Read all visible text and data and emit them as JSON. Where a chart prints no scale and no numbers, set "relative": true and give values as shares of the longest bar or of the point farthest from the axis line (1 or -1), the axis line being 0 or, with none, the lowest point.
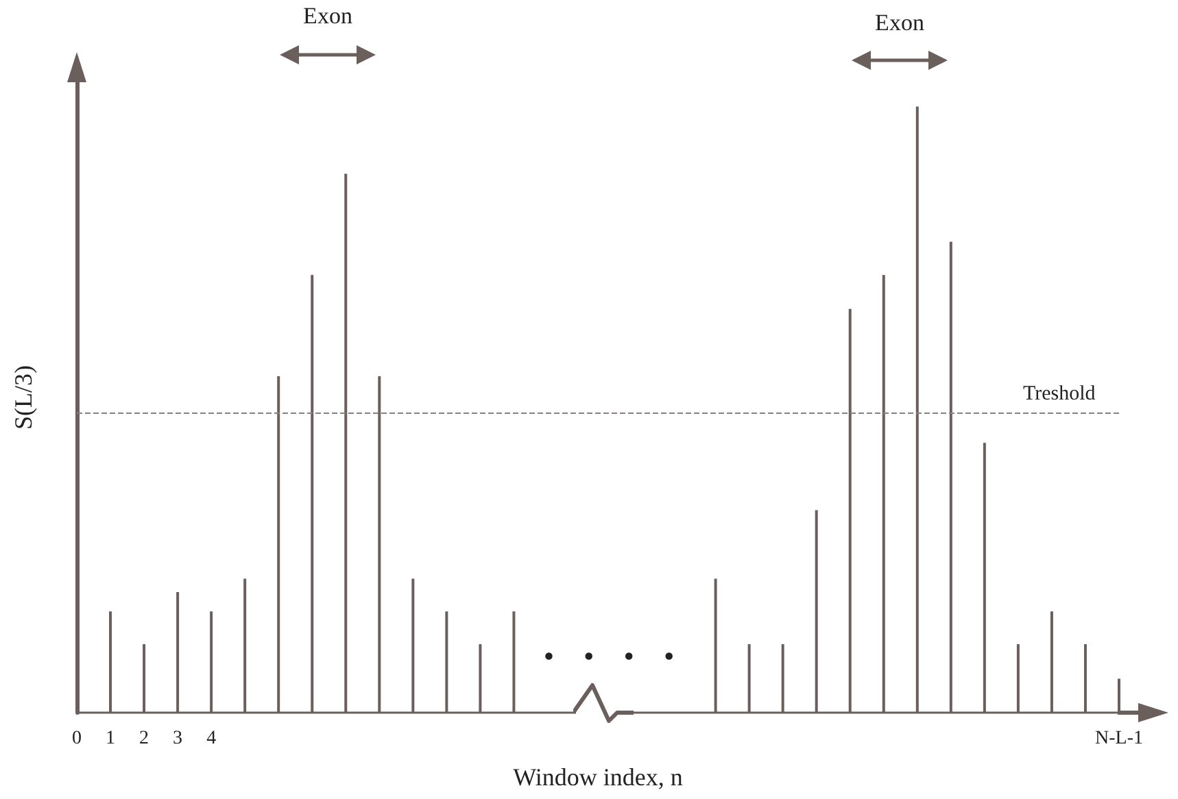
{
  "chart_data": {
    "type": "bar",
    "relative": true,
    "xlabel": "Window index, n",
    "ylabel": "S(L/3)",
    "color": "#6b5f5c",
    "categories": [
      "0",
      "1",
      "2",
      "3",
      "4",
      null,
      null,
      null,
      null,
      null,
      null,
      null,
      null,
      null,
      null,
      null,
      null,
      null,
      null,
      null,
      null,
      null,
      null,
      null,
      null,
      null,
      null,
      null,
      null,
      null,
      null,
      "N-L-1"
    ],
    "values": [
      null,
      0.167,
      0.113,
      0.199,
      0.167,
      0.221,
      0.555,
      0.722,
      0.889,
      0.555,
      0.221,
      0.167,
      0.113,
      0.167,
      null,
      null,
      null,
      null,
      null,
      0.221,
      0.113,
      0.113,
      0.334,
      0.666,
      0.722,
      1,
      0.777,
      0.445,
      0.113,
      0.167,
      0.113,
      0.056
    ],
    "ref_lines": [
      {
        "axis": "y",
        "value": 0.494,
        "label": "Treshold",
        "color": "#8a7f7c",
        "line_style": "dashed"
      }
    ],
    "annotations": [
      "Exon",
      "Exon",
      "• • • •"
    ]
  }
}
